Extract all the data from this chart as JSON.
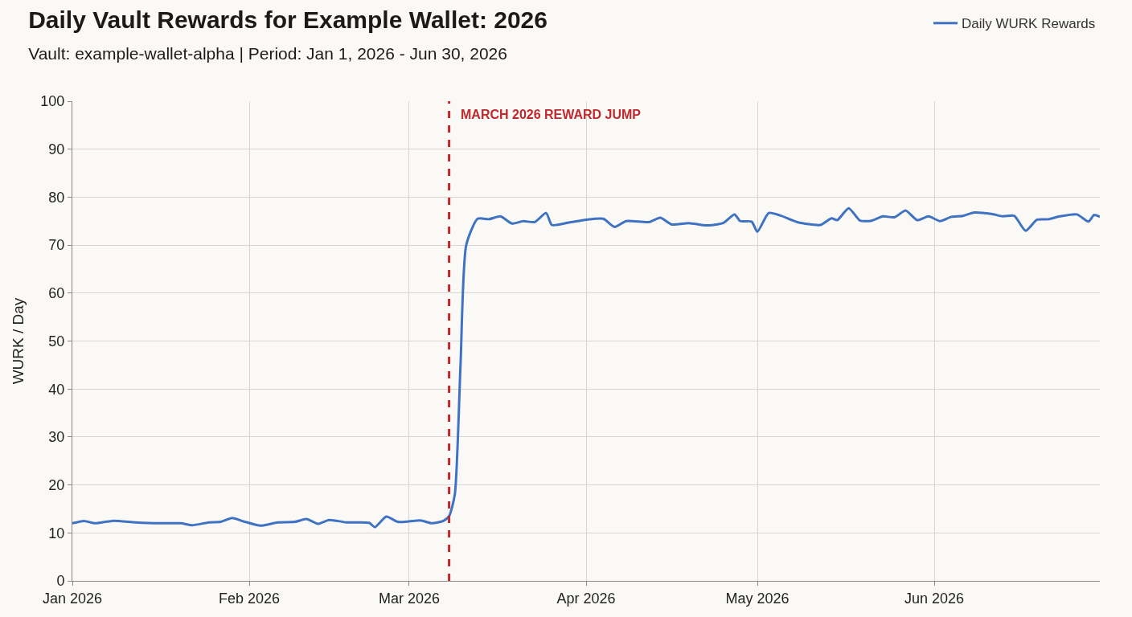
{
  "chart_data": {
    "type": "line",
    "title": "Daily Vault Rewards for Example Wallet: 2026",
    "subtitle": "Vault: example-wallet-alpha | Period: Jan 1, 2026 - Jun 30, 2026",
    "ylabel": "WURK / Day",
    "x": [
      "2026-01-01",
      "2026-01-03",
      "2026-01-05",
      "2026-01-08",
      "2026-01-12",
      "2026-01-16",
      "2026-01-20",
      "2026-01-22",
      "2026-01-25",
      "2026-01-27",
      "2026-01-29",
      "2026-01-31",
      "2026-02-03",
      "2026-02-06",
      "2026-02-09",
      "2026-02-11",
      "2026-02-13",
      "2026-02-15",
      "2026-02-18",
      "2026-02-22",
      "2026-02-23",
      "2026-02-25",
      "2026-02-27",
      "2026-03-01",
      "2026-03-03",
      "2026-03-05",
      "2026-03-07",
      "2026-03-08",
      "2026-03-09",
      "2026-03-10",
      "2026-03-11",
      "2026-03-13",
      "2026-03-15",
      "2026-03-17",
      "2026-03-19",
      "2026-03-21",
      "2026-03-23",
      "2026-03-25",
      "2026-03-26",
      "2026-03-29",
      "2026-04-01",
      "2026-04-04",
      "2026-04-06",
      "2026-04-08",
      "2026-04-12",
      "2026-04-14",
      "2026-04-16",
      "2026-04-19",
      "2026-04-22",
      "2026-04-25",
      "2026-04-27",
      "2026-04-28",
      "2026-04-30",
      "2026-05-01",
      "2026-05-03",
      "2026-05-05",
      "2026-05-08",
      "2026-05-12",
      "2026-05-14",
      "2026-05-15",
      "2026-05-17",
      "2026-05-19",
      "2026-05-21",
      "2026-05-23",
      "2026-05-25",
      "2026-05-27",
      "2026-05-29",
      "2026-05-31",
      "2026-06-02",
      "2026-06-04",
      "2026-06-06",
      "2026-06-08",
      "2026-06-11",
      "2026-06-13",
      "2026-06-15",
      "2026-06-17",
      "2026-06-19",
      "2026-06-21",
      "2026-06-23",
      "2026-06-26",
      "2026-06-28",
      "2026-06-29",
      "2026-06-30"
    ],
    "series": [
      {
        "name": "Daily WURK Rewards",
        "color": "#3f72c2",
        "values": [
          12,
          12.5,
          12,
          12.5,
          12.2,
          12,
          12,
          11.6,
          12.2,
          12.3,
          13.1,
          12.4,
          11.5,
          12.2,
          12.3,
          12.9,
          11.9,
          12.7,
          12.2,
          12.1,
          11.2,
          13.4,
          12.3,
          12.4,
          12.6,
          12,
          12.5,
          13.5,
          18,
          45,
          70,
          75.5,
          75.4,
          76,
          74.5,
          75,
          74.8,
          76.7,
          74.2,
          74.7,
          75.3,
          75.5,
          73.8,
          75,
          74.8,
          75.7,
          74.3,
          74.6,
          74.1,
          74.6,
          76.4,
          75,
          74.9,
          72.8,
          76.7,
          76.2,
          74.8,
          74.2,
          75.6,
          75.2,
          77.7,
          75.1,
          75.1,
          76,
          75.8,
          77.2,
          75.2,
          76,
          75,
          75.9,
          76.1,
          76.8,
          76.5,
          76,
          76.1,
          73,
          75.3,
          75.4,
          76,
          76.4,
          74.9,
          76.3,
          75.9
        ]
      }
    ],
    "xlim": [
      "2026-01-01",
      "2026-06-30"
    ],
    "xticks": [
      {
        "value": "2026-01-01",
        "label": "Jan 2026"
      },
      {
        "value": "2026-02-01",
        "label": "Feb 2026"
      },
      {
        "value": "2026-03-01",
        "label": "Mar 2026"
      },
      {
        "value": "2026-04-01",
        "label": "Apr 2026"
      },
      {
        "value": "2026-05-01",
        "label": "May 2026"
      },
      {
        "value": "2026-06-01",
        "label": "Jun 2026"
      }
    ],
    "ylim": [
      0,
      100
    ],
    "yticks": [
      0,
      10,
      20,
      30,
      40,
      50,
      60,
      70,
      80,
      90,
      100
    ],
    "ref_lines": [
      {
        "axis": "x",
        "value": "2026-03-08",
        "label": "MARCH 2026 REWARD JUMP",
        "color": "#c0282d",
        "line_style": "dashed"
      }
    ],
    "grid": true,
    "legend": "top right",
    "marker": "none",
    "line_style": "solid"
  }
}
